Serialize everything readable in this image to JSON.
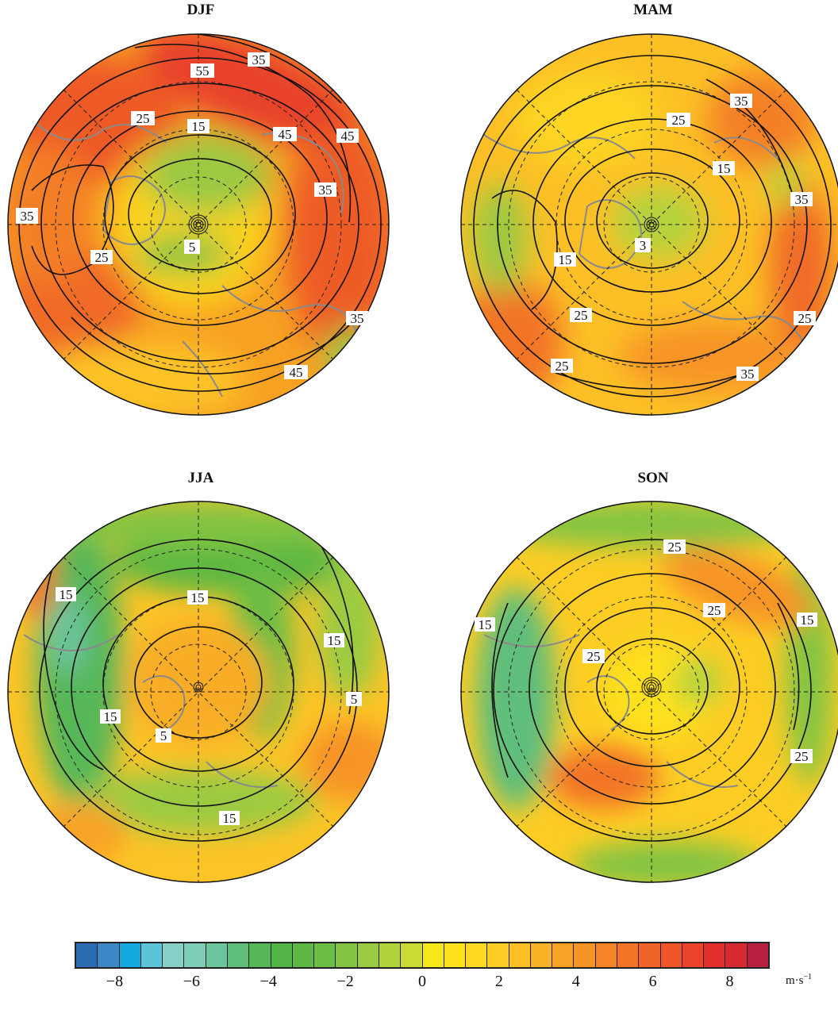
{
  "panels": [
    {
      "id": "djf",
      "title": "DJF",
      "contour_labels": [
        "55",
        "35",
        "25",
        "15",
        "45",
        "45",
        "35",
        "35",
        "25",
        "5",
        "35",
        "45"
      ]
    },
    {
      "id": "mam",
      "title": "MAM",
      "contour_labels": [
        "35",
        "25",
        "15",
        "35",
        "15",
        "3",
        "25",
        "25",
        "25",
        "35"
      ]
    },
    {
      "id": "jja",
      "title": "JJA",
      "contour_labels": [
        "15",
        "15",
        "15",
        "15",
        "5",
        "5",
        "15"
      ]
    },
    {
      "id": "son",
      "title": "SON",
      "contour_labels": [
        "25",
        "25",
        "15",
        "15",
        "25",
        "25"
      ]
    }
  ],
  "colorbar": {
    "tick_labels": [
      "−8",
      "−6",
      "−4",
      "−2",
      "0",
      "2",
      "4",
      "6",
      "8"
    ],
    "tick_values": [
      -8,
      -6,
      -4,
      -2,
      0,
      2,
      4,
      6,
      8
    ],
    "range": [
      -9,
      9
    ],
    "unit_base": "m·s",
    "unit_exp": "−1",
    "colors": [
      "#2b6bb1",
      "#3c88c6",
      "#16a9df",
      "#5cc4d8",
      "#86d0c8",
      "#7bcdb8",
      "#6dc59d",
      "#5fbe7c",
      "#56b759",
      "#52b444",
      "#5db843",
      "#6cbd44",
      "#83c443",
      "#9bcb42",
      "#b3d33d",
      "#cadb35",
      "#f7e619",
      "#fee11a",
      "#fed920",
      "#fdcd24",
      "#fcc026",
      "#fbb226",
      "#f9a326",
      "#f79426",
      "#f58426",
      "#f37427",
      "#f16428",
      "#ef5528",
      "#ec442a",
      "#e2312c",
      "#d72b31",
      "#b72041"
    ]
  }
}
